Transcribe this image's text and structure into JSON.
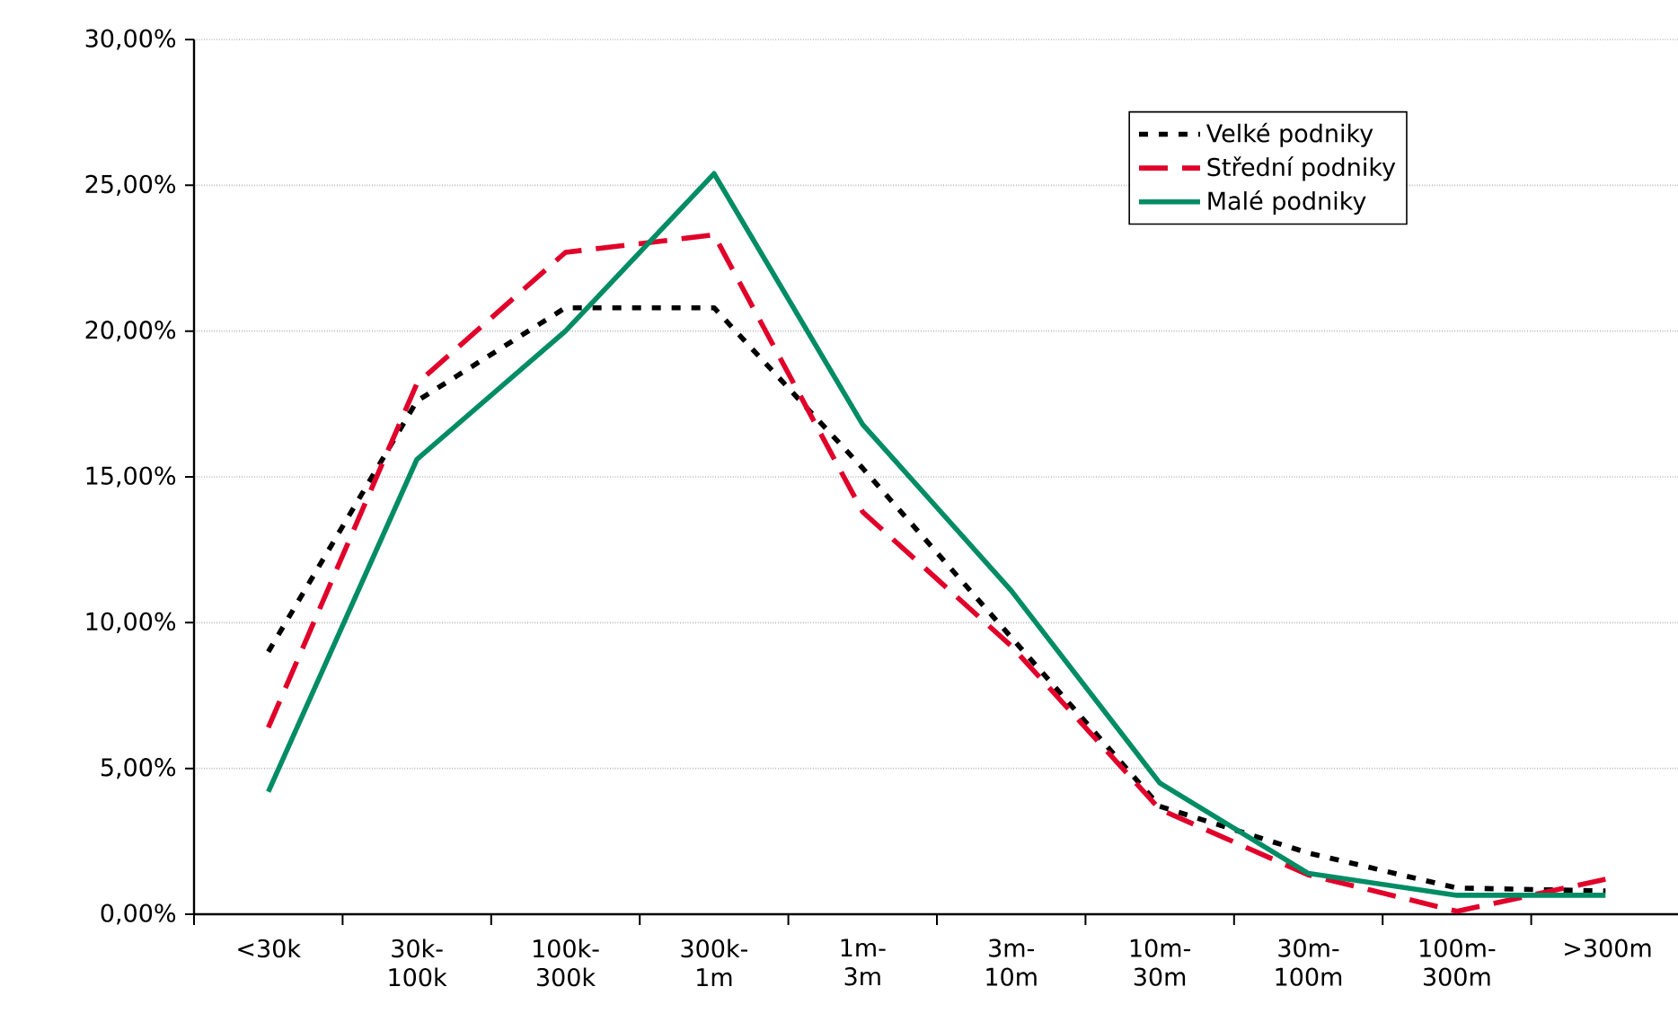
{
  "chart_data": {
    "type": "line",
    "categories": [
      "<30k",
      "30k-100k",
      "100k-300k",
      "300k-1m",
      "1m-3m",
      "3m-10m",
      "10m-30m",
      "30m-100m",
      "100m-300m",
      ">300m"
    ],
    "series": [
      {
        "name": "Velké podniky",
        "color": "#000000",
        "line_style": "dotted",
        "values": [
          9.0,
          17.6,
          20.8,
          20.8,
          15.3,
          9.5,
          3.7,
          2.1,
          0.9,
          0.8
        ]
      },
      {
        "name": "Střední podniky",
        "color": "#e0002a",
        "line_style": "dashed",
        "values": [
          6.4,
          18.2,
          22.7,
          23.3,
          13.8,
          9.2,
          3.6,
          1.35,
          0.1,
          1.2
        ]
      },
      {
        "name": "Malé podniky",
        "color": "#008c64",
        "line_style": "solid",
        "values": [
          4.2,
          15.6,
          20.0,
          25.4,
          16.8,
          11.1,
          4.5,
          1.4,
          0.65,
          0.65
        ]
      }
    ],
    "ylim": [
      0,
      30
    ],
    "yticks": [
      {
        "value": 0,
        "label": "0,00%"
      },
      {
        "value": 5,
        "label": "5,00%"
      },
      {
        "value": 10,
        "label": "10,00%"
      },
      {
        "value": 15,
        "label": "15,00%"
      },
      {
        "value": 20,
        "label": "20,00%"
      },
      {
        "value": 25,
        "label": "25,00%"
      },
      {
        "value": 30,
        "label": "30,00%"
      }
    ],
    "grid": "y",
    "legend": "top right",
    "marker": "none"
  }
}
